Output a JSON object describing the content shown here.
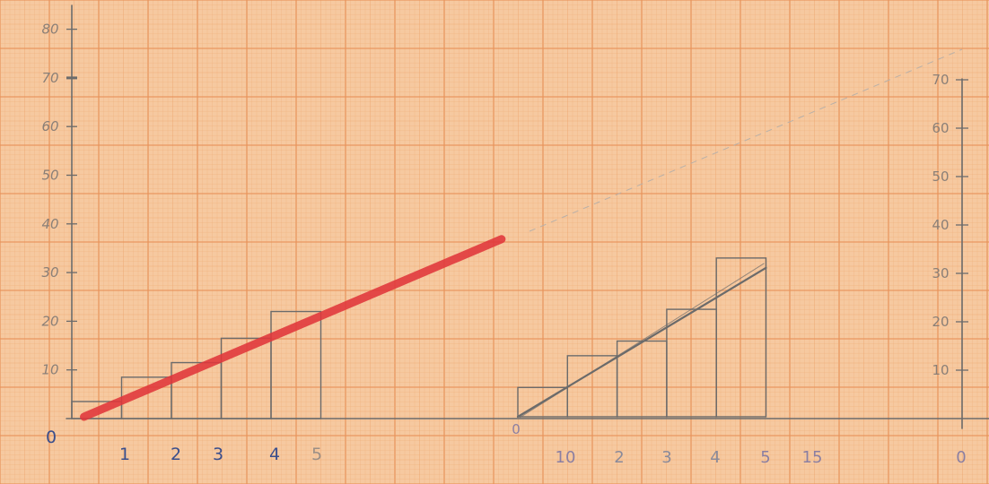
{
  "colors": {
    "paper": "#f6c9a0",
    "grid_minor": "#efa872",
    "grid_major": "#e8925a",
    "pencil": "#6b6b6b",
    "red_line": "#e0353a",
    "blue_ink": "#3a4e8c",
    "dash": "#b9b0a8"
  },
  "chart_data": [
    {
      "type": "bar",
      "title": "",
      "xlabel": "",
      "ylabel": "",
      "ylim": [
        0,
        80
      ],
      "y_ticks": [
        "10",
        "20",
        "30",
        "40",
        "50",
        "60",
        "70",
        "80"
      ],
      "x_ticks": [
        "1",
        "2",
        "3",
        "4",
        "5"
      ],
      "origin_label": "0",
      "bins": [
        {
          "x0": 0,
          "x1": 1,
          "value": 3.5
        },
        {
          "x0": 1,
          "x1": 2,
          "value": 8.5
        },
        {
          "x0": 2,
          "x1": 3,
          "value": 11.5
        },
        {
          "x0": 3,
          "x1": 4,
          "value": 16.5
        },
        {
          "x0": 4,
          "x1": 5,
          "value": 22
        }
      ],
      "line": {
        "x": [
          0.1,
          8.7
        ],
        "y": [
          0,
          36.5
        ],
        "color": "red"
      }
    },
    {
      "type": "bar",
      "title": "",
      "xlabel": "",
      "ylabel": "",
      "ylim": [
        0,
        70
      ],
      "y_ticks": [
        "10",
        "20",
        "30",
        "40",
        "50",
        "60",
        "70"
      ],
      "x_tick_marks": [
        "0",
        "10",
        "2",
        "3",
        "4",
        "5",
        "15",
        "0"
      ],
      "bins": [
        {
          "x0": 0,
          "x1": 1,
          "value": 6
        },
        {
          "x0": 1,
          "x1": 2,
          "value": 12.5
        },
        {
          "x0": 2,
          "x1": 3,
          "value": 15.5
        },
        {
          "x0": 3,
          "x1": 4,
          "value": 22
        },
        {
          "x0": 4,
          "x1": 5,
          "value": 32.5
        }
      ],
      "line": {
        "x": [
          0,
          5
        ],
        "y": [
          0,
          30.5
        ],
        "color": "pencil"
      }
    }
  ]
}
